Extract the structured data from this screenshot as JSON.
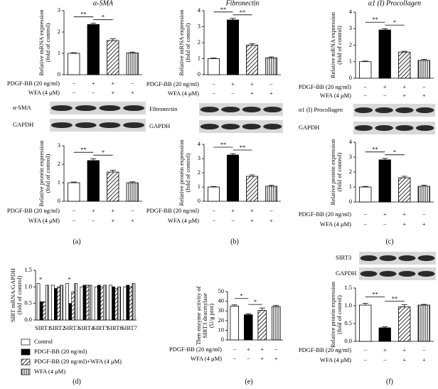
{
  "chart_data": [
    {
      "type": "bar",
      "title": "α-SMA",
      "ylabel": [
        "Relative mRNA expression",
        "(fold of control)"
      ],
      "values": [
        1.0,
        2.35,
        1.6,
        1.02
      ],
      "errors": [
        0.03,
        0.06,
        0.08,
        0.04
      ],
      "fills": [
        "white",
        "black",
        "diagonal-hatch",
        "vertical-hatch"
      ],
      "ylim": [
        0,
        3
      ],
      "yticks": [
        0,
        1,
        2,
        3
      ],
      "annotations": [
        "**",
        "*"
      ],
      "conditions": [
        {
          "label": "PDGF-BB (20 ng/ml)",
          "signs": [
            "−",
            "+",
            "+",
            "−"
          ]
        },
        {
          "label": "WFA (4 μM)",
          "signs": [
            "−",
            "−",
            "+",
            "+"
          ]
        }
      ]
    },
    {
      "type": "bar",
      "ylabel": [
        "Relative protein expression",
        "(fold of control)"
      ],
      "values": [
        1.0,
        2.2,
        1.58,
        1.0
      ],
      "errors": [
        0.04,
        0.1,
        0.1,
        0.05
      ],
      "fills": [
        "white",
        "black",
        "diagonal-hatch",
        "vertical-hatch"
      ],
      "ylim": [
        0,
        3
      ],
      "yticks": [
        0,
        1,
        2,
        3
      ],
      "annotations": [
        "**",
        "*"
      ],
      "conditions": [
        {
          "label": "PDGF-BB (20 ng/ml)",
          "signs": [
            "−",
            "+",
            "+",
            "−"
          ]
        },
        {
          "label": "WFA (4 μM)",
          "signs": [
            "−",
            "−",
            "+",
            "+"
          ]
        }
      ]
    },
    {
      "type": "bar",
      "title": "Fibronectin",
      "ylabel": [
        "Relative mRNA expression",
        "(fold of control)"
      ],
      "values": [
        1.0,
        3.42,
        1.85,
        1.05
      ],
      "errors": [
        0.04,
        0.1,
        0.08,
        0.06
      ],
      "fills": [
        "white",
        "black",
        "diagonal-hatch",
        "vertical-hatch"
      ],
      "ylim": [
        0,
        4
      ],
      "yticks": [
        0,
        1,
        2,
        3,
        4
      ],
      "annotations": [
        "**",
        "**"
      ],
      "conditions": [
        {
          "label": "PDGF-BB (20 ng/ml)",
          "signs": [
            "−",
            "+",
            "+",
            "−"
          ]
        },
        {
          "label": "WFA (4 μM)",
          "signs": [
            "−",
            "−",
            "+",
            "+"
          ]
        }
      ]
    },
    {
      "type": "bar",
      "ylabel": [
        "Relative protein expression",
        "(fold of control)"
      ],
      "values": [
        1.0,
        3.25,
        1.75,
        1.05
      ],
      "errors": [
        0.04,
        0.1,
        0.1,
        0.08
      ],
      "fills": [
        "white",
        "black",
        "diagonal-hatch",
        "vertical-hatch"
      ],
      "ylim": [
        0,
        4
      ],
      "yticks": [
        0,
        1,
        2,
        3,
        4
      ],
      "annotations": [
        "**",
        "**"
      ],
      "conditions": [
        {
          "label": "PDGF-BB (20 ng/ml)",
          "signs": [
            "−",
            "+",
            "+",
            "−"
          ]
        },
        {
          "label": "WFA (4 μM)",
          "signs": [
            "−",
            "−",
            "+",
            "+"
          ]
        }
      ]
    },
    {
      "type": "bar",
      "title": "α1 (I) Procollagen",
      "ylabel": [
        "Relative mRNA expression",
        "(fold of control)"
      ],
      "values": [
        1.0,
        2.92,
        1.58,
        1.08
      ],
      "errors": [
        0.04,
        0.08,
        0.05,
        0.06
      ],
      "fills": [
        "white",
        "black",
        "diagonal-hatch",
        "vertical-hatch"
      ],
      "ylim": [
        0,
        4
      ],
      "yticks": [
        0,
        1,
        2,
        3,
        4
      ],
      "annotations": [
        "**",
        "*"
      ],
      "conditions": [
        {
          "label": "PDGF-BB (20 ng/ml)",
          "signs": [
            "−",
            "+",
            "+",
            "−"
          ]
        },
        {
          "label": "WFA (4 μM)",
          "signs": [
            "−",
            "−",
            "+",
            "+"
          ]
        }
      ]
    },
    {
      "type": "bar",
      "ylabel": [
        "Relative protein expression",
        "(fold of control)"
      ],
      "values": [
        1.0,
        2.82,
        1.62,
        1.05
      ],
      "errors": [
        0.04,
        0.1,
        0.1,
        0.08
      ],
      "fills": [
        "white",
        "black",
        "diagonal-hatch",
        "vertical-hatch"
      ],
      "ylim": [
        0,
        4
      ],
      "yticks": [
        0,
        1,
        2,
        3,
        4
      ],
      "annotations": [
        "**",
        "*"
      ],
      "conditions": [
        {
          "label": "PDGF-BB (20 ng/ml)",
          "signs": [
            "−",
            "+",
            "+",
            "−"
          ]
        },
        {
          "label": "WFA (4 μM)",
          "signs": [
            "−",
            "−",
            "+",
            "+"
          ]
        }
      ]
    },
    {
      "type": "grouped-bar",
      "ylabel": [
        "SIRT mRNA/GAPDH",
        "(fold of control)"
      ],
      "categories": [
        "SIRT1",
        "SIRT2",
        "SIRT3",
        "SIRT4",
        "SIRT5",
        "SIRT6",
        "SIRT7"
      ],
      "series": [
        {
          "name": "Control",
          "fill": "white",
          "values": [
            1.1,
            1.05,
            1.1,
            1.0,
            1.0,
            1.05,
            1.0
          ]
        },
        {
          "name": "PDGF-BB (20 ng/ml)",
          "fill": "black",
          "values": [
            0.55,
            0.95,
            0.5,
            1.05,
            1.05,
            1.0,
            1.05
          ]
        },
        {
          "name": "PDGF-BB (20 ng/ml)+WFA (4 μM)",
          "fill": "diagonal-hatch",
          "values": [
            0.55,
            1.0,
            0.85,
            1.05,
            1.0,
            0.95,
            1.0
          ]
        },
        {
          "name": "WFA (4 μM)",
          "fill": "vertical-hatch",
          "values": [
            1.05,
            1.05,
            1.1,
            1.05,
            1.05,
            1.0,
            1.1
          ]
        }
      ],
      "ylim": [
        0,
        1.5
      ],
      "yticks": [
        {
          "value": 0,
          "label": "0.0"
        },
        0.5,
        {
          "value": 1,
          "label": "1.0"
        },
        1.5
      ],
      "annotations": [
        "*",
        "*"
      ]
    },
    {
      "type": "bar",
      "ylabel": [
        "Then enzyme activity of",
        "SIRT3 deacetylase",
        "(U/g prot)"
      ],
      "values": [
        35,
        26,
        30.5,
        34.5
      ],
      "errors": [
        1.2,
        1.2,
        2.5,
        1.3
      ],
      "fills": [
        "white",
        "black",
        "diagonal-hatch",
        "vertical-hatch"
      ],
      "ylim": [
        0,
        50
      ],
      "yticks": [
        0,
        10,
        20,
        30,
        40,
        50
      ],
      "annotations": [
        "*",
        "*"
      ],
      "conditions": [
        {
          "label": "PDGF-BB (20 ng/ml)",
          "signs": [
            "−",
            "+",
            "+",
            "−"
          ]
        },
        {
          "label": "WFA (4 μM)",
          "signs": [
            "−",
            "−",
            "+",
            "+"
          ]
        }
      ]
    },
    {
      "type": "bar",
      "ylabel": [
        "Relative protein expression",
        "(fold of control)"
      ],
      "values": [
        1.02,
        0.38,
        0.97,
        1.02
      ],
      "errors": [
        0.05,
        0.03,
        0.06,
        0.02
      ],
      "fills": [
        "white",
        "black",
        "diagonal-hatch",
        "vertical-hatch"
      ],
      "ylim": [
        0,
        1.5
      ],
      "yticks": [
        {
          "value": 0,
          "label": "0.0"
        },
        0.5,
        {
          "value": 1,
          "label": "1.0"
        },
        1.5
      ],
      "annotations": [
        "**",
        "**"
      ],
      "conditions": [
        {
          "label": "PDGF-BB (20 ng/ml)",
          "signs": [
            "−",
            "+",
            "+",
            "−"
          ]
        },
        {
          "label": "WFA (4 μM)",
          "signs": [
            "−",
            "−",
            "+",
            "+"
          ]
        }
      ]
    }
  ],
  "figure": {
    "blots": [
      [
        "α-SMA",
        "GAPDH"
      ],
      [
        "Fibronectin",
        "GAPDH"
      ],
      [
        "α1 (I) Procollagen",
        "GAPDH"
      ],
      [
        "SIRT3",
        "GAPDH"
      ]
    ],
    "panel_labels": [
      "(a)",
      "(b)",
      "(c)",
      "(d)",
      "(e)",
      "(f)"
    ]
  }
}
